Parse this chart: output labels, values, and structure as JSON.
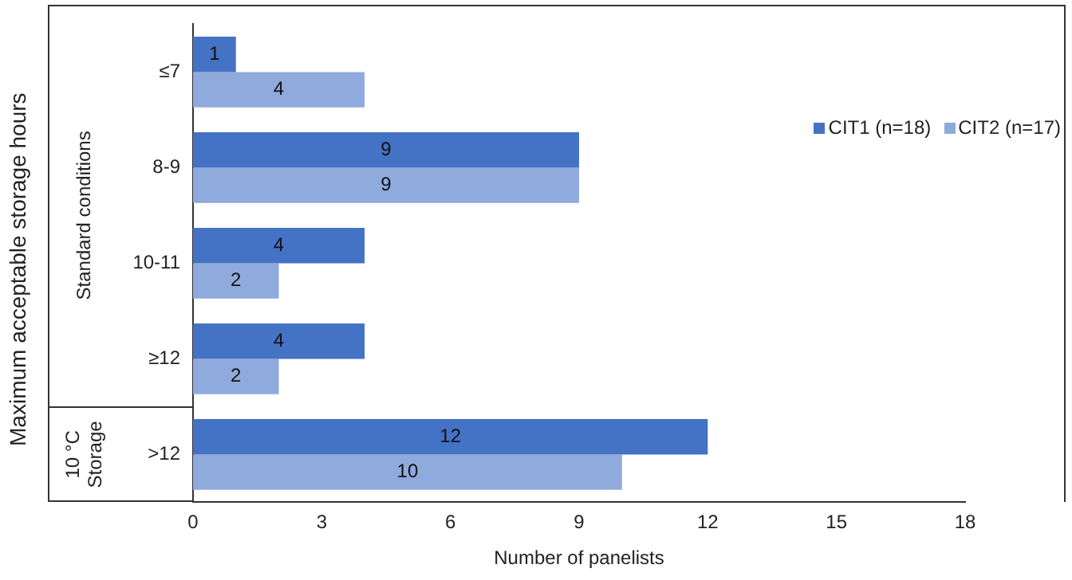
{
  "chart_data": {
    "type": "bar",
    "orientation": "horizontal",
    "xlabel": "Number of panelists",
    "ylabel": "Maximum acceptable storage hours",
    "categories": [
      "≤7",
      "8-9",
      "10-11",
      "≥12",
      ">12"
    ],
    "series": [
      {
        "name": "CIT1 (n=18)",
        "color": "#4472c4",
        "values": [
          1,
          9,
          4,
          4,
          12
        ]
      },
      {
        "name": "CIT2 (n=17)",
        "color": "#8faadc",
        "values": [
          4,
          9,
          2,
          2,
          10
        ]
      }
    ],
    "xlim": [
      0,
      18
    ],
    "xticks": [
      0,
      3,
      6,
      9,
      12,
      15,
      18
    ],
    "grid": false,
    "legend": "top right",
    "data_labels": true,
    "annotations": [
      "Standard conditions",
      "10 °C Storage"
    ]
  }
}
